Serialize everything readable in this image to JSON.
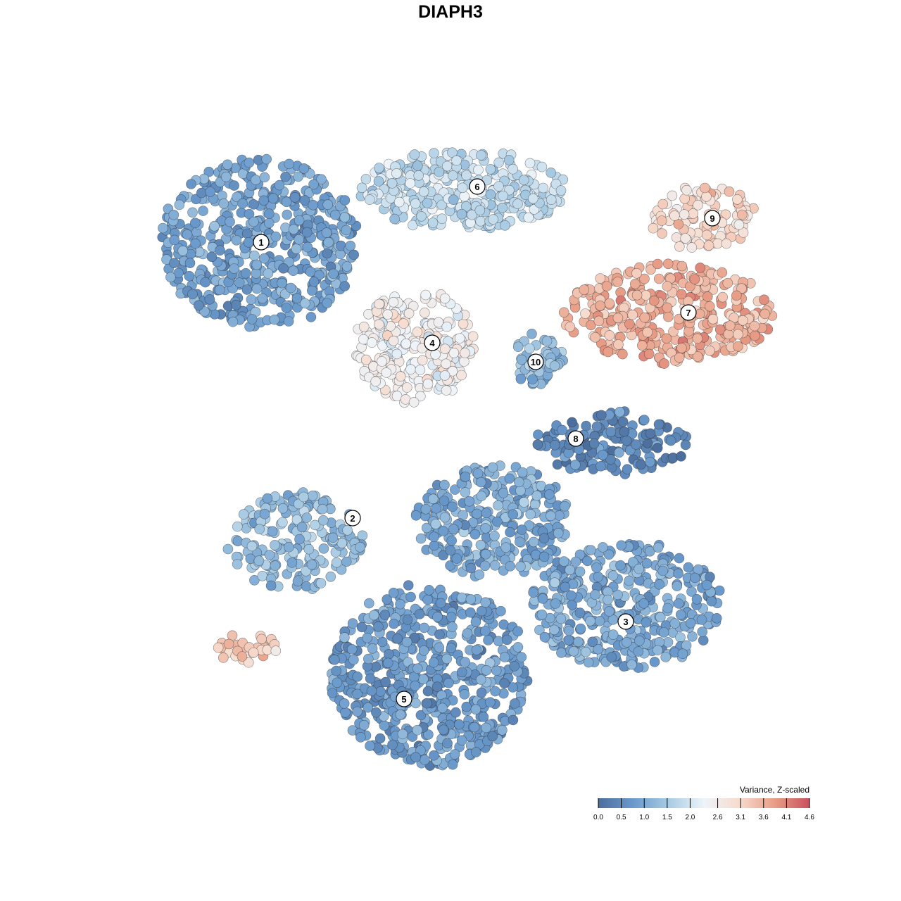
{
  "title": "DIAPH3",
  "chart_data": {
    "type": "scatter",
    "title": "DIAPH3",
    "xlabel": "",
    "ylabel": "",
    "grid": false,
    "axes_shown": false,
    "color_scale": {
      "title": "Variance, Z-scaled",
      "min": 0.0,
      "max": 4.6,
      "ticks": [
        "0.0",
        "0.5",
        "1.0",
        "1.5",
        "2.0",
        "2.6",
        "3.1",
        "3.6",
        "4.1",
        "4.6"
      ],
      "tick_values": [
        0.0,
        0.5,
        1.0,
        1.5,
        2.0,
        2.6,
        3.1,
        3.6,
        4.1,
        4.6
      ],
      "colors": [
        "#4c6e9c",
        "#6a9acc",
        "#a8cbe3",
        "#eef4f9",
        "#f7dbcd",
        "#e89e86",
        "#c9505c"
      ],
      "legend_position": "bottom-right"
    },
    "clusters": [
      {
        "label": "1",
        "mean_value": 0.9
      },
      {
        "label": "2",
        "mean_value": 1.3
      },
      {
        "label": "3",
        "mean_value": 1.0
      },
      {
        "label": "4",
        "mean_value": 2.5
      },
      {
        "label": "5",
        "mean_value": 0.8
      },
      {
        "label": "6",
        "mean_value": 1.8
      },
      {
        "label": "7",
        "mean_value": 3.6
      },
      {
        "label": "8",
        "mean_value": 0.5
      },
      {
        "label": "9",
        "mean_value": 3.0
      },
      {
        "label": "10",
        "mean_value": 1.2
      }
    ]
  },
  "colors": {
    "low": "#4c6e9c",
    "mid": "#eef4f9",
    "high": "#c9505c"
  }
}
